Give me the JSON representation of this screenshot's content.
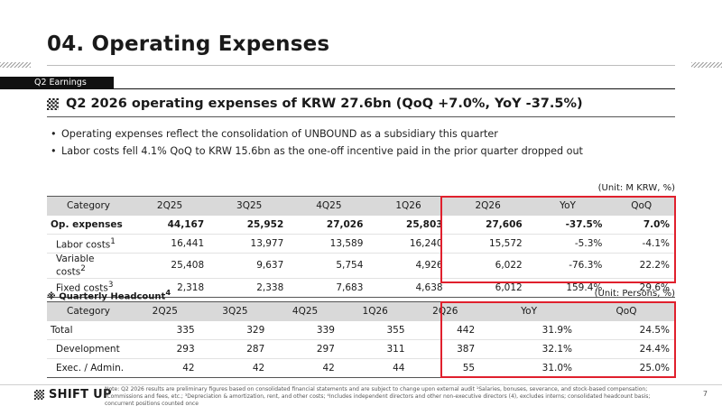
{
  "title": "04. Operating Expenses",
  "section_tab": "Q2 Earnings",
  "headline": "Q2 2026 operating expenses of KRW 27.6bn (QoQ +7.0%, YoY -37.5%)",
  "bullets": [
    "Operating expenses reflect the consolidation of UNBOUND as a subsidiary this quarter",
    "Labor costs fell 4.1% QoQ to KRW 15.6bn as the one-off incentive paid in the prior quarter dropped out"
  ],
  "opex": {
    "unit": "(Unit: M KRW, %)",
    "headers": [
      "Category",
      "2Q25",
      "3Q25",
      "4Q25",
      "1Q26",
      "2Q26",
      "YoY",
      "QoQ"
    ],
    "rows": [
      {
        "cat": "Op. expenses",
        "sup": "",
        "v": [
          "44,167",
          "25,952",
          "27,026",
          "25,803",
          "27,606",
          "-37.5%",
          "7.0%"
        ]
      },
      {
        "cat": "Labor costs",
        "sup": "1",
        "v": [
          "16,441",
          "13,977",
          "13,589",
          "16,240",
          "15,572",
          "-5.3%",
          "-4.1%"
        ]
      },
      {
        "cat": "Variable costs",
        "sup": "2",
        "v": [
          "25,408",
          "9,637",
          "5,754",
          "4,926",
          "6,022",
          "-76.3%",
          "22.2%"
        ]
      },
      {
        "cat": "Fixed costs",
        "sup": "3",
        "v": [
          "2,318",
          "2,338",
          "7,683",
          "4,638",
          "6,012",
          "159.4%",
          "29.6%"
        ]
      }
    ]
  },
  "headcount": {
    "label": "※ Quarterly Headcount",
    "label_sup": "4",
    "unit": "(Unit: Persons, %)",
    "headers": [
      "Category",
      "2Q25",
      "3Q25",
      "4Q25",
      "1Q26",
      "2Q26",
      "YoY",
      "QoQ"
    ],
    "rows": [
      {
        "cat": "Total",
        "v": [
          "335",
          "329",
          "339",
          "355",
          "442",
          "31.9%",
          "24.5%"
        ]
      },
      {
        "cat": "Development",
        "v": [
          "293",
          "287",
          "297",
          "311",
          "387",
          "32.1%",
          "24.4%"
        ]
      },
      {
        "cat": "Exec. / Admin.",
        "v": [
          "42",
          "42",
          "42",
          "44",
          "55",
          "31.0%",
          "25.0%"
        ]
      }
    ]
  },
  "footer": {
    "logo_text": "SHIFT UP",
    "note": "Note: Q2 2026 results are preliminary figures based on consolidated financial statements and are subject to change upon external audit ¹Salaries, bonuses, severance, and stock-based compensation; ²Commissions and fees, etc.; ³Depreciation & amortization, rent, and other costs; ⁴Includes independent directors and other non-executive directors (4), excludes interns; consolidated headcount basis; concurrent positions counted once",
    "page": "7"
  },
  "colors": {
    "highlight": "#e0202d",
    "header_bg": "#d9d9d9",
    "tab_bg": "#111111"
  }
}
